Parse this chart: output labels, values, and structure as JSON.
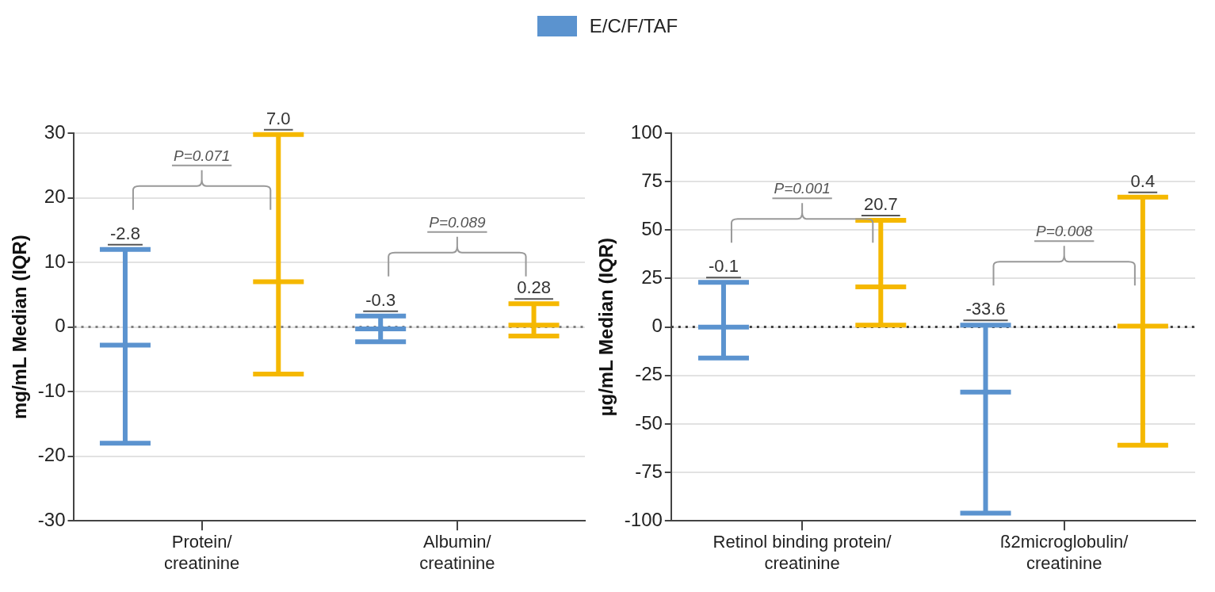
{
  "chart_data": [
    {
      "type": "box",
      "ylabel": "mg/mL Median (IQR)",
      "categories": [
        "Protein/ creatinine",
        "Albumin/ creatinine"
      ],
      "ylim": [
        -30,
        30
      ],
      "yticks": [
        -30,
        -20,
        -10,
        0,
        10,
        20,
        30
      ],
      "grid": "y",
      "legend": "top",
      "series": [
        {
          "name": "E/C/F/TAF",
          "color": "#5b93cf",
          "boxes": [
            {
              "low": -18,
              "q1": -18,
              "median": -2.8,
              "q3": 12,
              "high": 12
            },
            {
              "low": -2.3,
              "q1": -2.3,
              "median": -0.3,
              "q3": 1.7,
              "high": 1.7
            }
          ],
          "value_labels": [
            "-2.8",
            "-0.3"
          ]
        },
        {
          "color": "#f5b800",
          "boxes": [
            {
              "low": -7.3,
              "q1": -7.3,
              "median": 7.0,
              "q3": 29.8,
              "high": 29.8
            },
            {
              "low": -1.4,
              "q1": -1.4,
              "median": 0.28,
              "q3": 3.6,
              "high": 3.6
            }
          ],
          "value_labels": [
            "7.0",
            "0.28"
          ]
        }
      ],
      "ref_lines": [
        {
          "axis": "y",
          "value": 0,
          "line_style": "dotted",
          "color": "#808080"
        }
      ],
      "annotations": [
        "P=0.071",
        "P=0.089"
      ]
    },
    {
      "type": "box",
      "ylabel": "µg/mL Median (IQR)",
      "categories": [
        "Retinol binding protein/ creatinine",
        "ß2microglobulin/ creatinine"
      ],
      "ylim": [
        -100,
        100
      ],
      "yticks": [
        -100,
        -75,
        -50,
        -25,
        0,
        25,
        50,
        75,
        100
      ],
      "grid": "y",
      "series": [
        {
          "color": "#5b93cf",
          "boxes": [
            {
              "low": -16,
              "q1": -16,
              "median": -0.1,
              "q3": 23,
              "high": 23
            },
            {
              "low": -96,
              "q1": -96,
              "median": -33.6,
              "q3": 1,
              "high": 1
            }
          ],
          "value_labels": [
            "-0.1",
            "-33.6"
          ]
        },
        {
          "color": "#f5b800",
          "boxes": [
            {
              "low": 1,
              "q1": 1,
              "median": 20.7,
              "q3": 55,
              "high": 55
            },
            {
              "low": -61,
              "q1": -61,
              "median": 0.4,
              "q3": 67,
              "high": 67
            }
          ],
          "value_labels": [
            "20.7",
            "0.4"
          ]
        }
      ],
      "ref_lines": [
        {
          "axis": "y",
          "value": 0,
          "line_style": "dotted",
          "color": "#404040"
        }
      ],
      "annotations": [
        "P=0.001",
        "P=0.008"
      ]
    }
  ]
}
